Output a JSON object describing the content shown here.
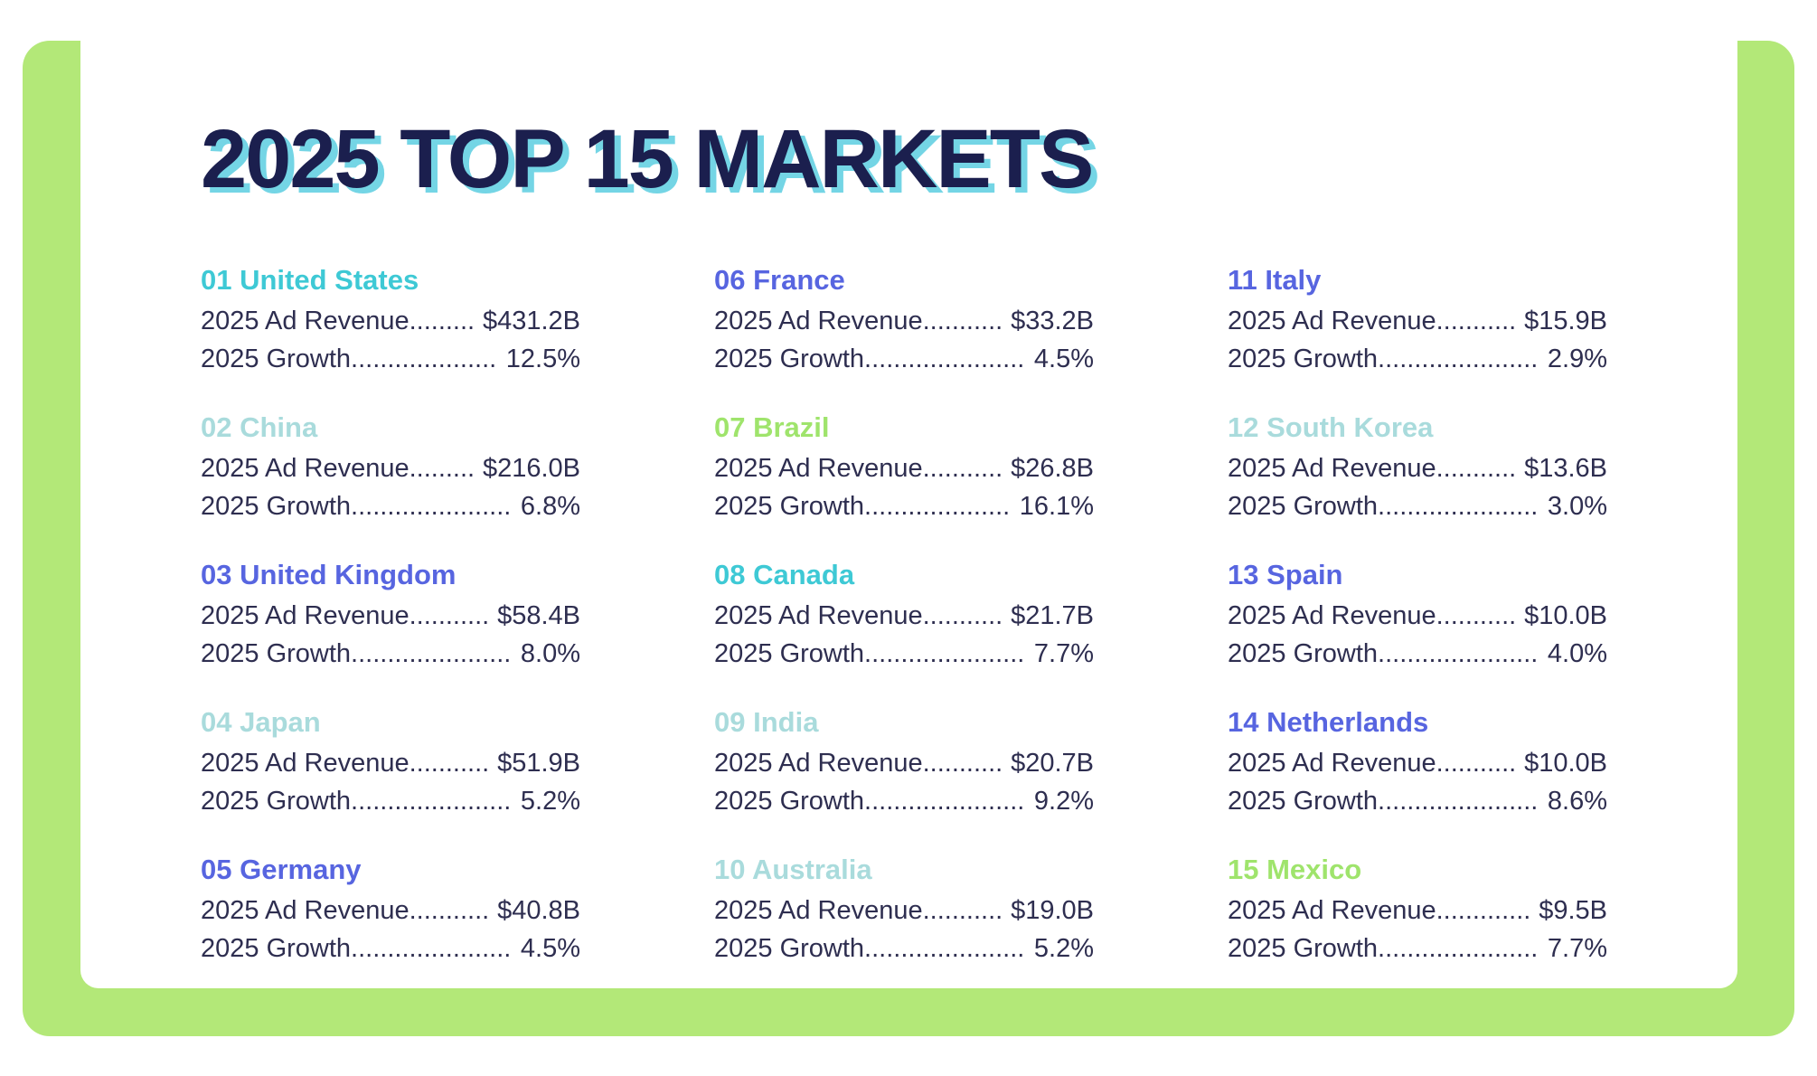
{
  "page": {
    "background": "#ffffff",
    "frame_color": "#b3e878",
    "panel_color": "#ffffff",
    "body_text_color": "#2e2e50"
  },
  "title": {
    "text": "2025 TOP 15 MARKETS",
    "color": "#1b1f4e",
    "shadow_color": "#74d5e5"
  },
  "labels": {
    "revenue": "2025 Ad Revenue",
    "growth": "2025 Growth",
    "leader": "............................................................"
  },
  "palette": {
    "turquoise": "#3ec9d5",
    "pale_aqua": "#a9dbdc",
    "violet": "#5765e0",
    "light_green": "#9fe46c"
  },
  "markets": [
    {
      "heading": "01 United States",
      "color": "#3ec9d5",
      "revenue": "$431.2B",
      "growth": "12.5%"
    },
    {
      "heading": "02 China",
      "color": "#a9dbdc",
      "revenue": "$216.0B",
      "growth": "6.8%"
    },
    {
      "heading": "03 United Kingdom",
      "color": "#5765e0",
      "revenue": "$58.4B",
      "growth": "8.0%"
    },
    {
      "heading": "04 Japan",
      "color": "#a9dbdc",
      "revenue": "$51.9B",
      "growth": "5.2%"
    },
    {
      "heading": "05 Germany",
      "color": "#5765e0",
      "revenue": "$40.8B",
      "growth": "4.5%"
    },
    {
      "heading": "06 France",
      "color": "#5765e0",
      "revenue": "$33.2B",
      "growth": "4.5%"
    },
    {
      "heading": "07 Brazil",
      "color": "#9fe46c",
      "revenue": "$26.8B",
      "growth": "16.1%"
    },
    {
      "heading": "08 Canada",
      "color": "#3ec9d5",
      "revenue": "$21.7B",
      "growth": "7.7%"
    },
    {
      "heading": "09 India",
      "color": "#a9dbdc",
      "revenue": "$20.7B",
      "growth": "9.2%"
    },
    {
      "heading": "10 Australia",
      "color": "#a9dbdc",
      "revenue": "$19.0B",
      "growth": "5.2%"
    },
    {
      "heading": "11 Italy",
      "color": "#5765e0",
      "revenue": "$15.9B",
      "growth": "2.9%"
    },
    {
      "heading": "12 South Korea",
      "color": "#a9dbdc",
      "revenue": "$13.6B",
      "growth": "3.0%"
    },
    {
      "heading": "13 Spain",
      "color": "#5765e0",
      "revenue": "$10.0B",
      "growth": "4.0%"
    },
    {
      "heading": "14 Netherlands",
      "color": "#5765e0",
      "revenue": "$10.0B",
      "growth": "8.6%"
    },
    {
      "heading": "15 Mexico",
      "color": "#9fe46c",
      "revenue": "$9.5B",
      "growth": "7.7%"
    }
  ],
  "chart_data": {
    "type": "table",
    "title": "2025 TOP 15 MARKETS",
    "columns": [
      "Rank",
      "Market",
      "2025 Ad Revenue ($B)",
      "2025 Growth (%)"
    ],
    "rows": [
      [
        1,
        "United States",
        431.2,
        12.5
      ],
      [
        2,
        "China",
        216.0,
        6.8
      ],
      [
        3,
        "United Kingdom",
        58.4,
        8.0
      ],
      [
        4,
        "Japan",
        51.9,
        5.2
      ],
      [
        5,
        "Germany",
        40.8,
        4.5
      ],
      [
        6,
        "France",
        33.2,
        4.5
      ],
      [
        7,
        "Brazil",
        26.8,
        16.1
      ],
      [
        8,
        "Canada",
        21.7,
        7.7
      ],
      [
        9,
        "India",
        20.7,
        9.2
      ],
      [
        10,
        "Australia",
        19.0,
        5.2
      ],
      [
        11,
        "Italy",
        15.9,
        2.9
      ],
      [
        12,
        "South Korea",
        13.6,
        3.0
      ],
      [
        13,
        "Spain",
        10.0,
        4.0
      ],
      [
        14,
        "Netherlands",
        10.0,
        8.6
      ],
      [
        15,
        "Mexico",
        9.5,
        7.7
      ]
    ]
  }
}
